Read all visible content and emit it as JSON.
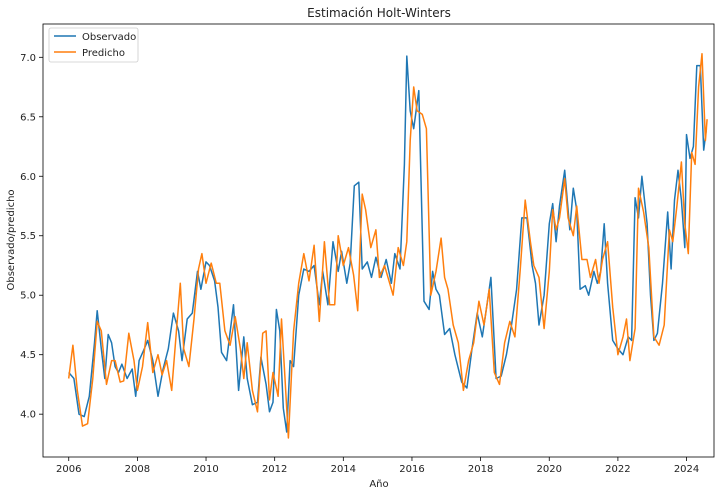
{
  "chart_data": {
    "type": "line",
    "title": "Estimación Holt-Winters",
    "xlabel": "Año",
    "ylabel": "Observado/predicho",
    "xlim": [
      2005.25,
      2024.8
    ],
    "ylim": [
      3.64,
      7.28
    ],
    "xticks": [
      2006,
      2008,
      2010,
      2012,
      2014,
      2016,
      2018,
      2020,
      2022,
      2024
    ],
    "yticks": [
      4.0,
      4.5,
      5.0,
      5.5,
      6.0,
      6.5,
      7.0
    ],
    "ytick_labels": [
      "4.0",
      "4.5",
      "5.0",
      "5.5",
      "6.0",
      "6.5",
      "7.0"
    ],
    "grid": false,
    "legend_position": "top-left",
    "series": [
      {
        "name": "Observado",
        "color": "#1f77b4",
        "points": [
          [
            2006.0,
            4.35
          ],
          [
            2006.15,
            4.3
          ],
          [
            2006.3,
            4.0
          ],
          [
            2006.45,
            3.98
          ],
          [
            2006.6,
            4.15
          ],
          [
            2006.75,
            4.6
          ],
          [
            2006.83,
            4.87
          ],
          [
            2006.95,
            4.55
          ],
          [
            2007.05,
            4.3
          ],
          [
            2007.15,
            4.67
          ],
          [
            2007.25,
            4.6
          ],
          [
            2007.35,
            4.4
          ],
          [
            2007.45,
            4.35
          ],
          [
            2007.55,
            4.42
          ],
          [
            2007.7,
            4.3
          ],
          [
            2007.85,
            4.38
          ],
          [
            2007.95,
            4.15
          ],
          [
            2008.05,
            4.45
          ],
          [
            2008.2,
            4.55
          ],
          [
            2008.3,
            4.62
          ],
          [
            2008.45,
            4.45
          ],
          [
            2008.6,
            4.15
          ],
          [
            2008.75,
            4.38
          ],
          [
            2008.9,
            4.55
          ],
          [
            2009.05,
            4.85
          ],
          [
            2009.2,
            4.7
          ],
          [
            2009.3,
            4.45
          ],
          [
            2009.45,
            4.8
          ],
          [
            2009.6,
            4.85
          ],
          [
            2009.75,
            5.2
          ],
          [
            2009.85,
            5.05
          ],
          [
            2010.0,
            5.28
          ],
          [
            2010.1,
            5.25
          ],
          [
            2010.25,
            5.12
          ],
          [
            2010.35,
            4.9
          ],
          [
            2010.45,
            4.52
          ],
          [
            2010.6,
            4.45
          ],
          [
            2010.8,
            4.92
          ],
          [
            2010.95,
            4.2
          ],
          [
            2011.1,
            4.65
          ],
          [
            2011.2,
            4.3
          ],
          [
            2011.35,
            4.08
          ],
          [
            2011.5,
            4.1
          ],
          [
            2011.6,
            4.48
          ],
          [
            2011.75,
            4.25
          ],
          [
            2011.85,
            4.02
          ],
          [
            2011.95,
            4.1
          ],
          [
            2012.05,
            4.88
          ],
          [
            2012.15,
            4.7
          ],
          [
            2012.25,
            4.05
          ],
          [
            2012.35,
            3.85
          ],
          [
            2012.45,
            4.45
          ],
          [
            2012.55,
            4.4
          ],
          [
            2012.7,
            5.0
          ],
          [
            2012.85,
            5.22
          ],
          [
            2013.0,
            5.2
          ],
          [
            2013.15,
            5.25
          ],
          [
            2013.3,
            4.92
          ],
          [
            2013.4,
            5.2
          ],
          [
            2013.55,
            4.92
          ],
          [
            2013.7,
            5.45
          ],
          [
            2013.85,
            5.2
          ],
          [
            2013.95,
            5.37
          ],
          [
            2014.1,
            5.1
          ],
          [
            2014.2,
            5.27
          ],
          [
            2014.32,
            5.92
          ],
          [
            2014.45,
            5.95
          ],
          [
            2014.55,
            5.22
          ],
          [
            2014.7,
            5.28
          ],
          [
            2014.82,
            5.15
          ],
          [
            2014.95,
            5.32
          ],
          [
            2015.1,
            5.15
          ],
          [
            2015.25,
            5.3
          ],
          [
            2015.4,
            5.1
          ],
          [
            2015.5,
            5.35
          ],
          [
            2015.65,
            5.22
          ],
          [
            2015.78,
            6.1
          ],
          [
            2015.85,
            7.01
          ],
          [
            2015.95,
            6.55
          ],
          [
            2016.05,
            6.4
          ],
          [
            2016.2,
            6.72
          ],
          [
            2016.35,
            4.95
          ],
          [
            2016.5,
            4.88
          ],
          [
            2016.6,
            5.2
          ],
          [
            2016.7,
            5.05
          ],
          [
            2016.8,
            5.0
          ],
          [
            2016.95,
            4.67
          ],
          [
            2017.1,
            4.72
          ],
          [
            2017.25,
            4.5
          ],
          [
            2017.45,
            4.27
          ],
          [
            2017.6,
            4.22
          ],
          [
            2017.75,
            4.55
          ],
          [
            2017.9,
            4.85
          ],
          [
            2018.05,
            4.65
          ],
          [
            2018.2,
            4.95
          ],
          [
            2018.3,
            5.15
          ],
          [
            2018.45,
            4.3
          ],
          [
            2018.6,
            4.32
          ],
          [
            2018.75,
            4.5
          ],
          [
            2018.9,
            4.75
          ],
          [
            2019.05,
            5.05
          ],
          [
            2019.2,
            5.65
          ],
          [
            2019.35,
            5.65
          ],
          [
            2019.5,
            5.25
          ],
          [
            2019.6,
            5.1
          ],
          [
            2019.7,
            4.75
          ],
          [
            2019.85,
            5.0
          ],
          [
            2020.0,
            5.6
          ],
          [
            2020.1,
            5.77
          ],
          [
            2020.2,
            5.45
          ],
          [
            2020.3,
            5.75
          ],
          [
            2020.45,
            6.05
          ],
          [
            2020.6,
            5.55
          ],
          [
            2020.7,
            5.9
          ],
          [
            2020.8,
            5.72
          ],
          [
            2020.9,
            5.05
          ],
          [
            2021.05,
            5.08
          ],
          [
            2021.15,
            5.0
          ],
          [
            2021.3,
            5.2
          ],
          [
            2021.4,
            5.1
          ],
          [
            2021.5,
            5.2
          ],
          [
            2021.6,
            5.6
          ],
          [
            2021.7,
            5.1
          ],
          [
            2021.85,
            4.62
          ],
          [
            2022.0,
            4.55
          ],
          [
            2022.15,
            4.5
          ],
          [
            2022.3,
            4.65
          ],
          [
            2022.4,
            4.62
          ],
          [
            2022.5,
            5.82
          ],
          [
            2022.6,
            5.65
          ],
          [
            2022.7,
            6.0
          ],
          [
            2022.85,
            5.6
          ],
          [
            2022.95,
            5.0
          ],
          [
            2023.05,
            4.62
          ],
          [
            2023.15,
            4.68
          ],
          [
            2023.3,
            5.1
          ],
          [
            2023.45,
            5.7
          ],
          [
            2023.55,
            5.22
          ],
          [
            2023.65,
            5.8
          ],
          [
            2023.75,
            6.05
          ],
          [
            2023.85,
            5.8
          ],
          [
            2023.95,
            5.4
          ],
          [
            2024.0,
            6.35
          ],
          [
            2024.1,
            6.15
          ],
          [
            2024.2,
            6.25
          ],
          [
            2024.3,
            6.93
          ],
          [
            2024.4,
            6.93
          ],
          [
            2024.5,
            6.22
          ],
          [
            2024.58,
            6.4
          ]
        ]
      },
      {
        "name": "Predicho",
        "color": "#ff7f0e",
        "points": [
          [
            2006.0,
            4.3
          ],
          [
            2006.12,
            4.58
          ],
          [
            2006.25,
            4.2
          ],
          [
            2006.4,
            3.9
          ],
          [
            2006.55,
            3.92
          ],
          [
            2006.7,
            4.3
          ],
          [
            2006.83,
            4.78
          ],
          [
            2006.95,
            4.7
          ],
          [
            2007.1,
            4.25
          ],
          [
            2007.25,
            4.45
          ],
          [
            2007.35,
            4.45
          ],
          [
            2007.5,
            4.27
          ],
          [
            2007.6,
            4.28
          ],
          [
            2007.75,
            4.68
          ],
          [
            2007.9,
            4.45
          ],
          [
            2008.0,
            4.2
          ],
          [
            2008.15,
            4.4
          ],
          [
            2008.3,
            4.77
          ],
          [
            2008.45,
            4.35
          ],
          [
            2008.6,
            4.5
          ],
          [
            2008.72,
            4.33
          ],
          [
            2008.85,
            4.45
          ],
          [
            2009.0,
            4.2
          ],
          [
            2009.15,
            4.75
          ],
          [
            2009.25,
            5.1
          ],
          [
            2009.35,
            4.55
          ],
          [
            2009.5,
            4.4
          ],
          [
            2009.65,
            4.8
          ],
          [
            2009.78,
            5.22
          ],
          [
            2009.88,
            5.35
          ],
          [
            2010.0,
            5.1
          ],
          [
            2010.15,
            5.27
          ],
          [
            2010.3,
            5.1
          ],
          [
            2010.4,
            5.1
          ],
          [
            2010.55,
            4.7
          ],
          [
            2010.7,
            4.58
          ],
          [
            2010.85,
            4.82
          ],
          [
            2011.0,
            4.55
          ],
          [
            2011.1,
            4.3
          ],
          [
            2011.2,
            4.6
          ],
          [
            2011.35,
            4.2
          ],
          [
            2011.5,
            4.02
          ],
          [
            2011.65,
            4.68
          ],
          [
            2011.75,
            4.7
          ],
          [
            2011.85,
            4.12
          ],
          [
            2011.95,
            4.35
          ],
          [
            2012.1,
            4.15
          ],
          [
            2012.2,
            4.8
          ],
          [
            2012.3,
            4.3
          ],
          [
            2012.4,
            3.8
          ],
          [
            2012.55,
            4.7
          ],
          [
            2012.7,
            5.1
          ],
          [
            2012.85,
            5.35
          ],
          [
            2013.0,
            5.12
          ],
          [
            2013.15,
            5.42
          ],
          [
            2013.3,
            4.78
          ],
          [
            2013.45,
            5.45
          ],
          [
            2013.6,
            4.92
          ],
          [
            2013.75,
            4.92
          ],
          [
            2013.85,
            5.5
          ],
          [
            2014.0,
            5.25
          ],
          [
            2014.15,
            5.4
          ],
          [
            2014.3,
            5.17
          ],
          [
            2014.42,
            4.87
          ],
          [
            2014.55,
            5.85
          ],
          [
            2014.65,
            5.72
          ],
          [
            2014.8,
            5.4
          ],
          [
            2014.95,
            5.55
          ],
          [
            2015.05,
            5.15
          ],
          [
            2015.2,
            5.25
          ],
          [
            2015.35,
            5.1
          ],
          [
            2015.45,
            5.0
          ],
          [
            2015.6,
            5.4
          ],
          [
            2015.75,
            5.25
          ],
          [
            2015.85,
            5.45
          ],
          [
            2015.95,
            6.3
          ],
          [
            2016.05,
            6.75
          ],
          [
            2016.15,
            6.55
          ],
          [
            2016.3,
            6.52
          ],
          [
            2016.42,
            6.4
          ],
          [
            2016.55,
            5.0
          ],
          [
            2016.7,
            5.2
          ],
          [
            2016.85,
            5.48
          ],
          [
            2016.95,
            5.15
          ],
          [
            2017.05,
            5.05
          ],
          [
            2017.2,
            4.75
          ],
          [
            2017.35,
            4.6
          ],
          [
            2017.5,
            4.2
          ],
          [
            2017.65,
            4.45
          ],
          [
            2017.8,
            4.6
          ],
          [
            2017.95,
            4.95
          ],
          [
            2018.1,
            4.75
          ],
          [
            2018.25,
            5.05
          ],
          [
            2018.4,
            4.35
          ],
          [
            2018.55,
            4.25
          ],
          [
            2018.7,
            4.6
          ],
          [
            2018.85,
            4.78
          ],
          [
            2019.0,
            4.65
          ],
          [
            2019.15,
            5.2
          ],
          [
            2019.3,
            5.8
          ],
          [
            2019.45,
            5.45
          ],
          [
            2019.55,
            5.25
          ],
          [
            2019.7,
            5.15
          ],
          [
            2019.85,
            4.72
          ],
          [
            2020.0,
            5.2
          ],
          [
            2020.1,
            5.72
          ],
          [
            2020.2,
            5.55
          ],
          [
            2020.3,
            5.65
          ],
          [
            2020.45,
            5.98
          ],
          [
            2020.55,
            5.65
          ],
          [
            2020.7,
            5.5
          ],
          [
            2020.8,
            5.75
          ],
          [
            2020.95,
            5.3
          ],
          [
            2021.1,
            5.3
          ],
          [
            2021.2,
            5.15
          ],
          [
            2021.35,
            5.3
          ],
          [
            2021.45,
            5.1
          ],
          [
            2021.55,
            5.3
          ],
          [
            2021.7,
            5.45
          ],
          [
            2021.85,
            4.9
          ],
          [
            2022.0,
            4.5
          ],
          [
            2022.15,
            4.65
          ],
          [
            2022.25,
            4.8
          ],
          [
            2022.35,
            4.45
          ],
          [
            2022.5,
            4.72
          ],
          [
            2022.6,
            5.9
          ],
          [
            2022.75,
            5.7
          ],
          [
            2022.9,
            5.4
          ],
          [
            2023.05,
            4.65
          ],
          [
            2023.2,
            4.58
          ],
          [
            2023.35,
            4.75
          ],
          [
            2023.5,
            5.55
          ],
          [
            2023.6,
            5.45
          ],
          [
            2023.72,
            5.75
          ],
          [
            2023.85,
            6.12
          ],
          [
            2023.95,
            5.6
          ],
          [
            2024.05,
            5.35
          ],
          [
            2024.15,
            6.2
          ],
          [
            2024.25,
            6.1
          ],
          [
            2024.35,
            6.75
          ],
          [
            2024.45,
            7.03
          ],
          [
            2024.55,
            6.3
          ],
          [
            2024.6,
            6.48
          ]
        ]
      }
    ]
  }
}
